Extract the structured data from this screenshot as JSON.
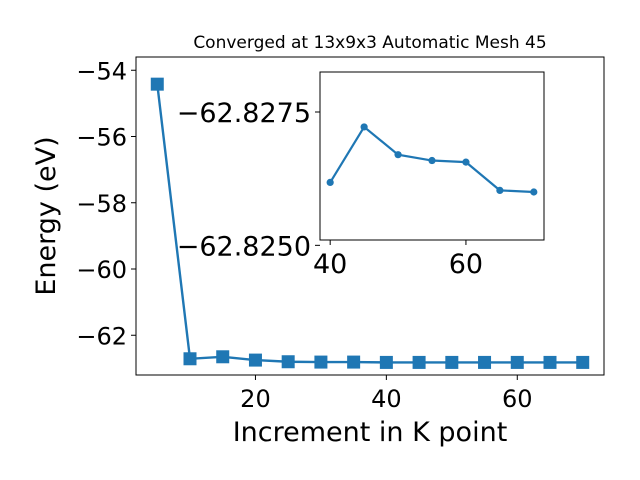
{
  "chart_data": [
    {
      "type": "line",
      "title": "Converged at 13x9x3 Automatic Mesh 45",
      "xlabel": "Increment in K point",
      "ylabel": "Energy (eV)",
      "xlim": [
        1.75,
        73.25
      ],
      "ylim": [
        -63.2,
        -53.6
      ],
      "xticks": [
        20,
        40,
        60
      ],
      "yticks": [
        -54,
        -56,
        -58,
        -60,
        -62
      ],
      "grid": false,
      "marker": "square",
      "color": "#1f77b4",
      "series": [
        {
          "x": [
            5,
            10,
            15,
            20,
            25,
            30,
            35,
            40,
            45,
            50,
            55,
            60,
            65,
            70
          ],
          "y": [
            -54.42,
            -62.71,
            -62.65,
            -62.75,
            -62.8,
            -62.81,
            -62.81,
            -62.82,
            -62.82,
            -62.82,
            -62.82,
            -62.82,
            -62.82,
            -62.82
          ]
        }
      ]
    },
    {
      "type": "line",
      "inset": true,
      "xlim": [
        38.5,
        71.5
      ],
      "ylim": [
        -62.8251,
        -62.82825
      ],
      "xticks": [
        40,
        60
      ],
      "yticks": [
        -62.8275,
        -62.825
      ],
      "ytick_labels": [
        "−62.8275",
        "−62.8250"
      ],
      "marker": "circle",
      "color": "#1f77b4",
      "series": [
        {
          "x": [
            40,
            45,
            50,
            55,
            60,
            65,
            70
          ],
          "y": [
            -62.82618,
            -62.82722,
            -62.8267,
            -62.82659,
            -62.82656,
            -62.82603,
            -62.826
          ]
        }
      ]
    }
  ]
}
